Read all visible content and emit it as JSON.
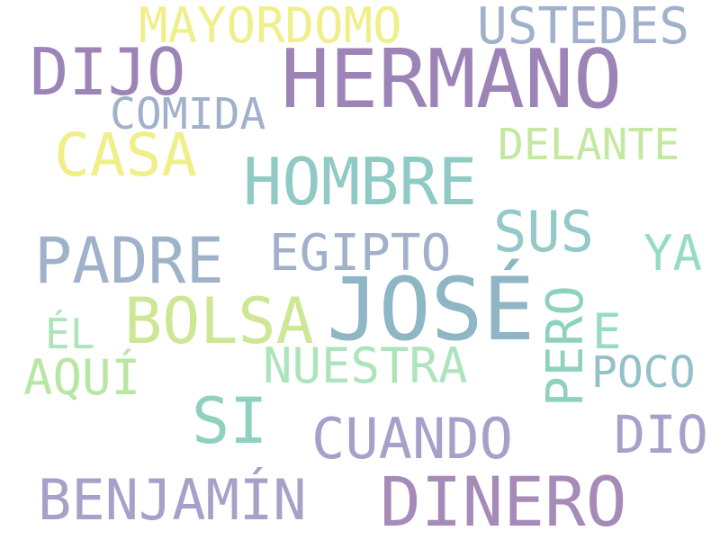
{
  "words": {
    "hermano": {
      "text": "HERMANO",
      "color": "#9d84b6"
    },
    "jose": {
      "text": "JOSÉ",
      "color": "#8fb6c4"
    },
    "hombre": {
      "text": "HOMBRE",
      "color": "#8fcac4"
    },
    "dinero": {
      "text": "DINERO",
      "color": "#a68ab8"
    },
    "dijo": {
      "text": "DIJO",
      "color": "#9d84b6"
    },
    "padre": {
      "text": "PADRE",
      "color": "#9fb2c9"
    },
    "bolsa": {
      "text": "BOLSA",
      "color": "#cde795"
    },
    "si": {
      "text": "SI",
      "color": "#8fd1bf"
    },
    "casa": {
      "text": "CASA",
      "color": "#f0ef8a"
    },
    "benjamin": {
      "text": "BENJAMÍN",
      "color": "#a8a0c8"
    },
    "cuando": {
      "text": "CUANDO",
      "color": "#a8a0c8"
    },
    "sus": {
      "text": "SUS",
      "color": "#95c8c8"
    },
    "ustedes": {
      "text": "USTEDES",
      "color": "#a2b1cb"
    },
    "mayordomo": {
      "text": "MAYORDOMO",
      "color": "#f0ef8a"
    },
    "egipto": {
      "text": "EGIPTO",
      "color": "#a2b1cb"
    },
    "nuestra": {
      "text": "NUESTRA",
      "color": "#aee4bc"
    },
    "aqui": {
      "text": "AQUÍ",
      "color": "#b8e6a4"
    },
    "dio": {
      "text": "DIO",
      "color": "#a8a0c8"
    },
    "delante": {
      "text": "DELANTE",
      "color": "#c4e8a0"
    },
    "comida": {
      "text": "COMIDA",
      "color": "#a2b1cb"
    },
    "ya": {
      "text": "YA",
      "color": "#96dcc4"
    },
    "e": {
      "text": "E",
      "color": "#96dcc4"
    },
    "el": {
      "text": "ÉL",
      "color": "#aee4bc"
    },
    "poco": {
      "text": "POCO",
      "color": "#95c0c8"
    },
    "pero": {
      "text": "PERO",
      "color": "#8fd1bf"
    }
  }
}
